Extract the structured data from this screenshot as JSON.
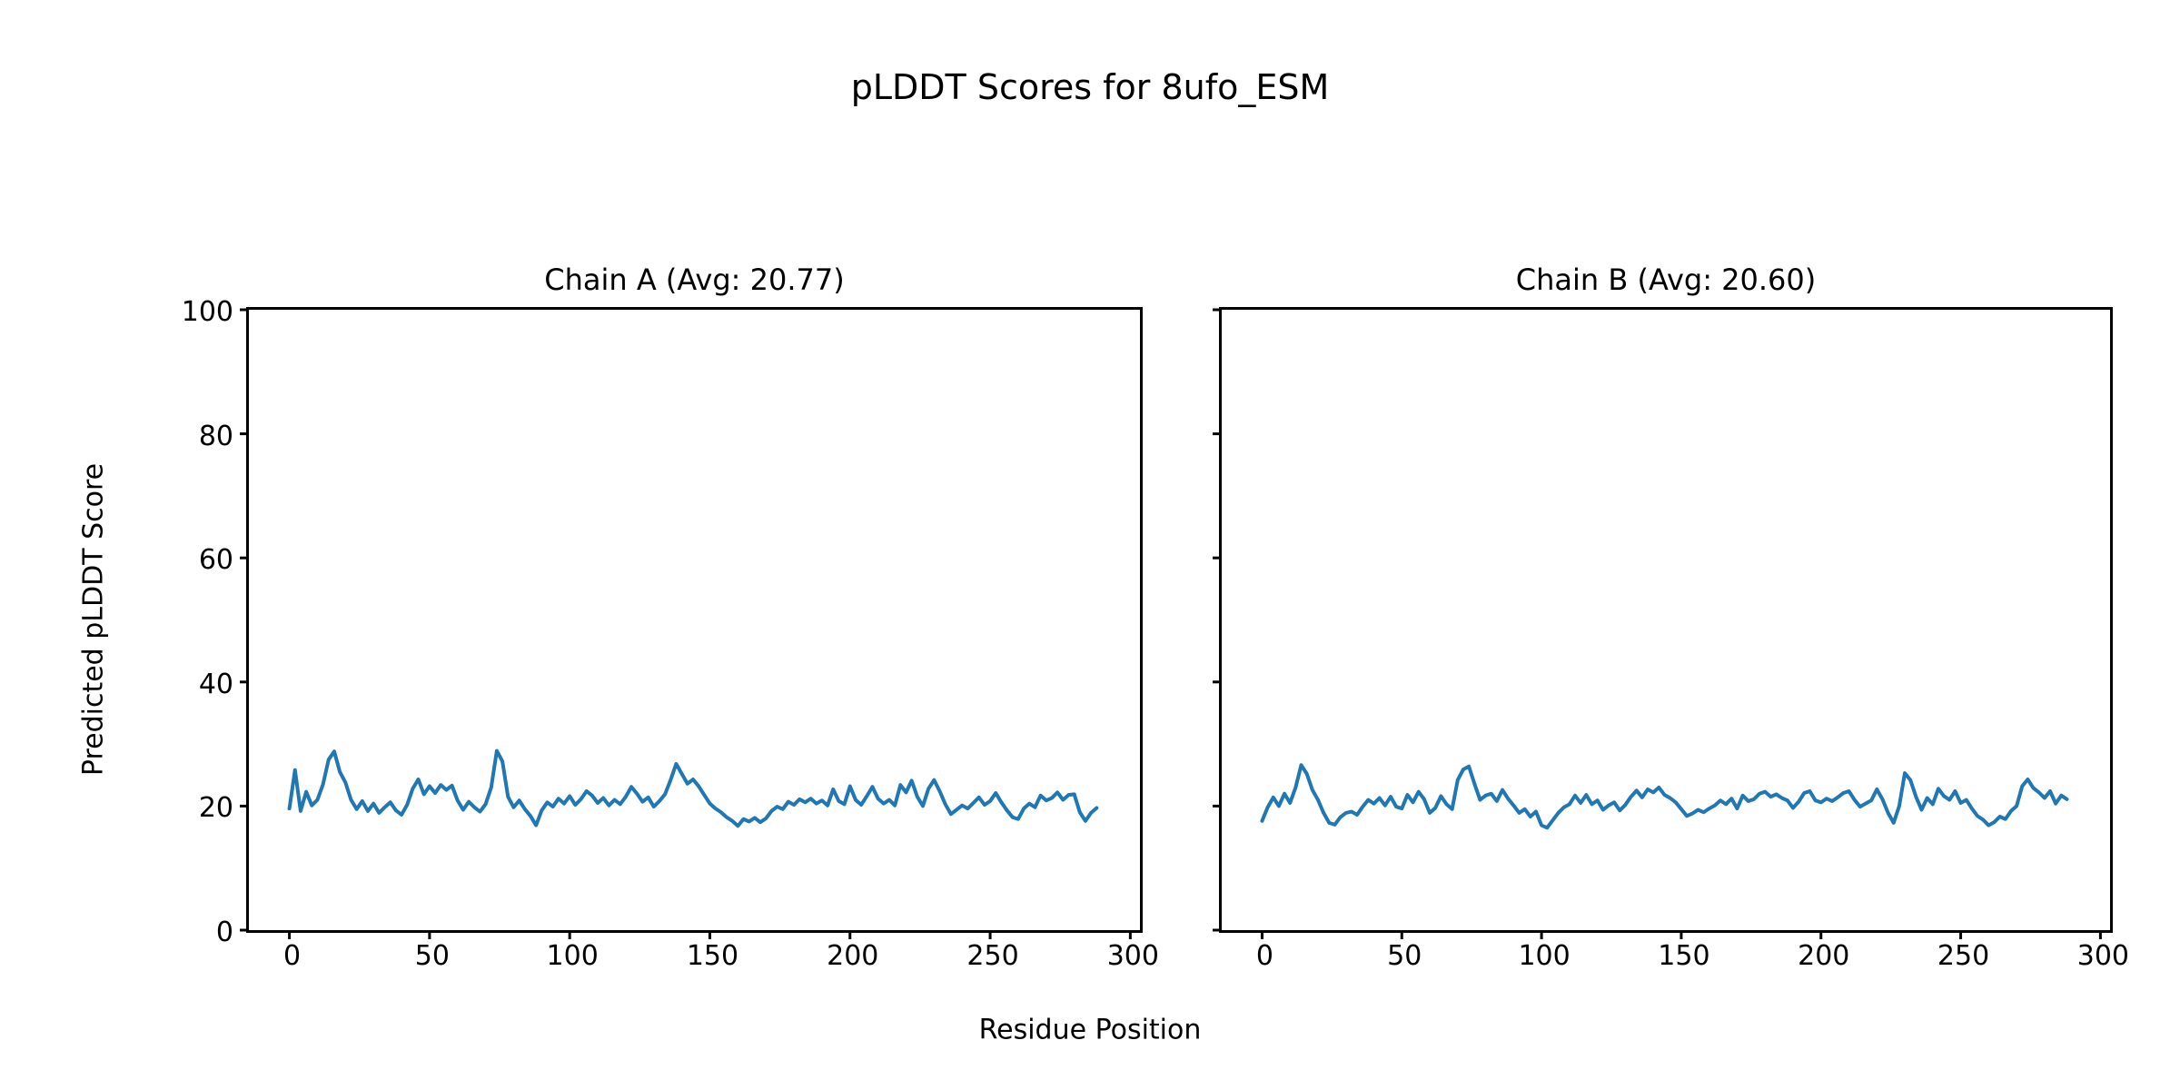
{
  "figure": {
    "title": "pLDDT Scores for 8ufo_ESM",
    "xlabel": "Residue Position",
    "ylabel": "Predicted pLDDT Score"
  },
  "chart_data": [
    {
      "type": "line",
      "title": "Chain A (Avg: 20.77)",
      "chain": "A",
      "avg": 20.77,
      "line_color": "#1f77b4",
      "axis_color": "#000000",
      "grid": false,
      "legend": "none",
      "xlim": [
        -14.45,
        303.45
      ],
      "ylim": [
        0,
        100
      ],
      "xticks": [
        0,
        50,
        100,
        150,
        200,
        250,
        300
      ],
      "yticks": [
        0,
        20,
        40,
        60,
        80,
        100
      ],
      "show_ytick_labels": true,
      "x_start": 0,
      "x_step": 2,
      "values": [
        19.6,
        25.8,
        19.2,
        22.3,
        20.1,
        21.0,
        23.5,
        27.5,
        28.8,
        25.5,
        23.8,
        21.0,
        19.5,
        20.8,
        19.2,
        20.4,
        18.9,
        19.8,
        20.6,
        19.3,
        18.6,
        20.2,
        22.8,
        24.3,
        21.9,
        23.2,
        22.1,
        23.4,
        22.6,
        23.3,
        20.9,
        19.4,
        20.7,
        19.8,
        19.1,
        20.3,
        23.0,
        28.9,
        27.2,
        21.5,
        19.8,
        20.9,
        19.5,
        18.4,
        16.9,
        19.3,
        20.6,
        19.9,
        21.2,
        20.4,
        21.6,
        20.2,
        21.1,
        22.4,
        21.7,
        20.5,
        21.3,
        20.1,
        21.0,
        20.3,
        21.5,
        23.1,
        22.0,
        20.7,
        21.4,
        19.9,
        20.8,
        21.9,
        24.2,
        26.8,
        25.2,
        23.6,
        24.3,
        23.2,
        21.8,
        20.4,
        19.6,
        19.0,
        18.2,
        17.6,
        16.8,
        17.9,
        17.5,
        18.1,
        17.4,
        18.0,
        19.2,
        19.9,
        19.5,
        20.7,
        20.2,
        21.1,
        20.6,
        21.2,
        20.4,
        20.9,
        20.1,
        22.7,
        20.8,
        20.3,
        23.2,
        21.0,
        20.2,
        21.6,
        23.1,
        21.2,
        20.4,
        21.0,
        20.1,
        23.4,
        22.2,
        24.1,
        21.5,
        20.0,
        22.8,
        24.2,
        22.4,
        20.3,
        18.7,
        19.4,
        20.1,
        19.6,
        20.5,
        21.4,
        20.2,
        20.8,
        22.1,
        20.6,
        19.3,
        18.2,
        17.9,
        19.6,
        20.4,
        19.8,
        21.7,
        20.9,
        21.3,
        22.2,
        21.0,
        21.8,
        21.9,
        19.0,
        17.6,
        18.9,
        19.7
      ]
    },
    {
      "type": "line",
      "title": "Chain B (Avg: 20.60)",
      "chain": "B",
      "avg": 20.6,
      "line_color": "#1f77b4",
      "axis_color": "#000000",
      "grid": false,
      "legend": "none",
      "xlim": [
        -14.45,
        303.45
      ],
      "ylim": [
        0,
        100
      ],
      "xticks": [
        0,
        50,
        100,
        150,
        200,
        250,
        300
      ],
      "yticks": [
        0,
        20,
        40,
        60,
        80,
        100
      ],
      "show_ytick_labels": false,
      "x_start": 0,
      "x_step": 2,
      "values": [
        17.6,
        19.8,
        21.4,
        20.0,
        22.0,
        20.5,
        23.0,
        26.6,
        25.2,
        22.6,
        21.0,
        18.9,
        17.3,
        17.0,
        18.2,
        18.9,
        19.1,
        18.6,
        19.9,
        21.0,
        20.4,
        21.3,
        20.1,
        21.5,
        19.9,
        19.6,
        21.8,
        20.6,
        22.3,
        21.1,
        18.9,
        19.7,
        21.6,
        20.3,
        19.5,
        24.2,
        25.9,
        26.4,
        23.6,
        21.0,
        21.7,
        22.0,
        20.8,
        22.6,
        21.2,
        20.1,
        18.9,
        19.5,
        18.3,
        19.1,
        16.9,
        16.5,
        17.7,
        18.9,
        19.8,
        20.3,
        21.7,
        20.5,
        21.8,
        20.3,
        20.9,
        19.4,
        20.1,
        20.6,
        19.3,
        20.2,
        21.5,
        22.5,
        21.4,
        22.7,
        22.2,
        23.0,
        21.8,
        21.3,
        20.6,
        19.5,
        18.4,
        18.8,
        19.4,
        19.0,
        19.6,
        20.1,
        20.9,
        20.3,
        21.2,
        19.6,
        21.7,
        20.8,
        21.1,
        22.0,
        22.3,
        21.5,
        21.9,
        21.3,
        20.9,
        19.7,
        20.7,
        22.1,
        22.4,
        20.9,
        20.6,
        21.2,
        20.8,
        21.4,
        22.1,
        22.4,
        21.0,
        19.9,
        20.4,
        20.9,
        22.7,
        21.1,
        18.9,
        17.3,
        20.0,
        25.3,
        24.2,
        21.5,
        19.4,
        21.3,
        20.3,
        22.8,
        21.6,
        21.0,
        22.4,
        20.5,
        21.0,
        19.6,
        18.4,
        17.8,
        16.9,
        17.4,
        18.3,
        17.9,
        19.2,
        20.0,
        23.2,
        24.3,
        22.9,
        22.2,
        21.3,
        22.4,
        20.4,
        21.7,
        21.1
      ]
    }
  ]
}
